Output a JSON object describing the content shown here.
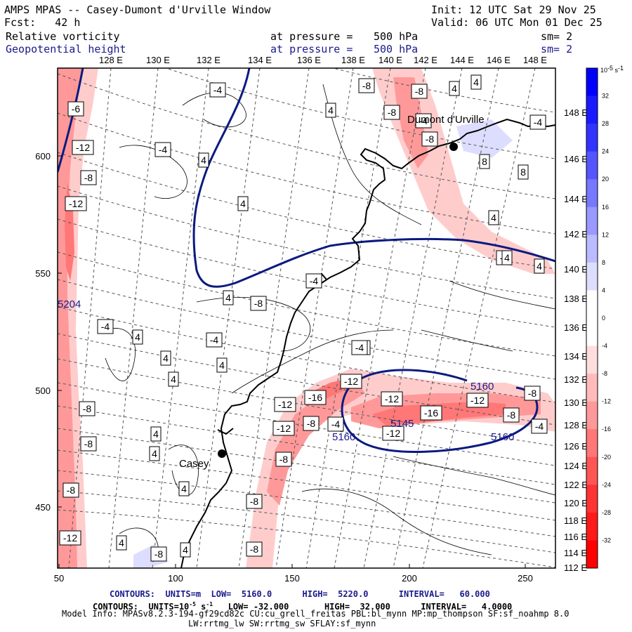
{
  "header": {
    "title": "AMPS MPAS -- Casey-Dumont d'Urville Window",
    "init": "Init: 12 UTC Sat 29 Nov 25",
    "fcst": "Fcst:   42 h",
    "valid": "Valid: 06 UTC Mon 01 Dec 25",
    "field1": {
      "name": "Relative vorticity",
      "level_label": "at pressure =",
      "level": "500 hPa",
      "sm": "sm= 2"
    },
    "field2": {
      "name": "Geopotential height",
      "level_label": "at pressure =",
      "level": "500 hPa",
      "sm": "sm= 2"
    }
  },
  "colors": {
    "height_contour": "#0b1a80",
    "coast": "#000000",
    "grid": "#555555",
    "positive_vorticity": "#0000ff",
    "negative_vorticity": "#ff0000"
  },
  "map": {
    "top_longitudes": [
      "128 E",
      "130 E",
      "132 E",
      "134 E",
      "136 E",
      "138 E",
      "140 E",
      "142 E",
      "144 E",
      "146 E",
      "148 E"
    ],
    "right_longitudes": [
      "148 E",
      "146 E",
      "144 E",
      "142 E",
      "140 E",
      "138 E",
      "136 E",
      "134 E",
      "132 E",
      "130 E",
      "128 E",
      "126 E",
      "124 E",
      "122 E",
      "120 E",
      "118 E",
      "116 E",
      "114 E",
      "112 E"
    ],
    "x_ticks": [
      50,
      100,
      150,
      200,
      250
    ],
    "y_ticks": [
      450,
      500,
      550,
      600
    ],
    "stations": [
      {
        "name": "Casey"
      },
      {
        "name": "Dumont d'Urville"
      }
    ],
    "height_labels": [
      "5160",
      "5160",
      "5160",
      "5145",
      "5204"
    ],
    "vort_labels": [
      "-4",
      "-6",
      "-12",
      "-8",
      "-12",
      "-4",
      "4",
      "4",
      "4",
      "-4",
      "-8",
      "-8",
      "4",
      "4",
      "-8",
      "-4",
      "8",
      "8",
      "4",
      "-4",
      "4",
      "-8",
      "-4",
      "-4",
      "4",
      "4",
      "4",
      "-4",
      "-4",
      "4",
      "4",
      "-4",
      "-8",
      "4",
      "4",
      "-4",
      "-16",
      "-12",
      "-12",
      "-8",
      "-12",
      "-16",
      "-12",
      "-12",
      "-8",
      "-8",
      "-4",
      "-8",
      "4",
      "-8",
      "-12",
      "-8",
      "-8",
      "4",
      "4",
      "-8",
      "-8",
      "4",
      "-4",
      "-8",
      "4",
      "-12",
      "-8",
      "4",
      "-4"
    ]
  },
  "colorbar": {
    "unit": "10^-5 s^-1",
    "levels": [
      32,
      28,
      24,
      20,
      16,
      12,
      8,
      4,
      0,
      -4,
      -8,
      -12,
      -16,
      -20,
      -24,
      -28,
      -32
    ],
    "colors": [
      "#0000ff",
      "#1a1aff",
      "#3333ff",
      "#5555ff",
      "#7777ff",
      "#9999ff",
      "#bbbbff",
      "#ddddff",
      "#ffffff",
      "#ffffff",
      "#ffdddd",
      "#ffbbbb",
      "#ff9999",
      "#ff7777",
      "#ff5555",
      "#ff3333",
      "#ff1a1a",
      "#ff0000"
    ]
  },
  "footer": {
    "line1": "CONTOURS:  UNITS=m  LOW=  5160.0      HIGH=  5220.0      INTERVAL=   60.000",
    "line2_a": "CONTOURS:  UNITS=10",
    "line2_b": " s",
    "line2_c": "   LOW= -32.000       HIGH=  32.000      INTERVAL=   4.0000",
    "line3": "Model Info: MPASv8.2.3-194-gf29cd82c CU:cu_grell_freitas PBL:bl_mynn MP:mp_thompson SF:sf_noahmp 8.0",
    "line4": "LW:rrtmg_lw SW:rrtmg_sw SFLAY:sf_mynn"
  }
}
